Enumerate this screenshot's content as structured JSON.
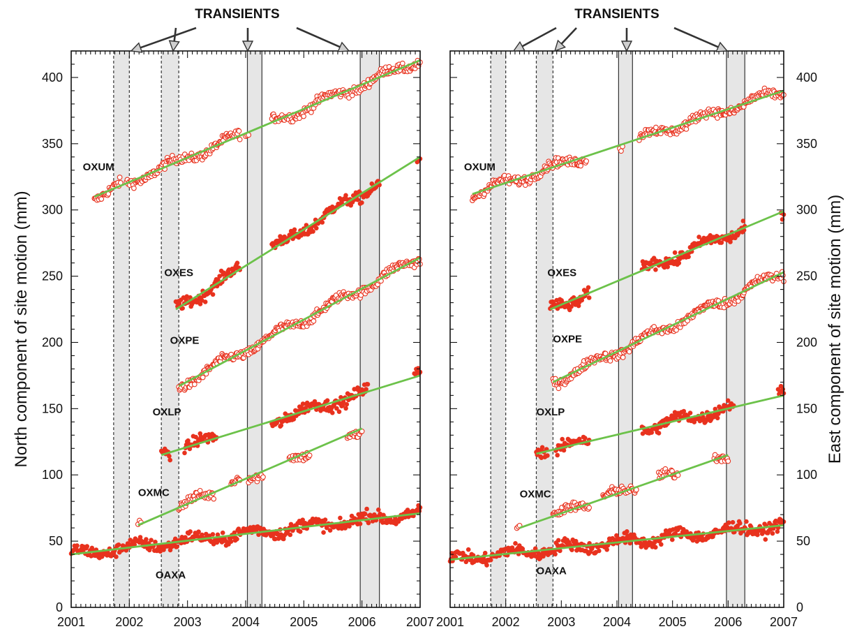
{
  "chart_data": [
    {
      "type": "scatter",
      "panel": "left",
      "ylabel": "North component of site motion (mm)",
      "xlim": [
        2001,
        2007
      ],
      "ylim": [
        0,
        420
      ],
      "x_ticks": [
        "2001",
        "2002",
        "2003",
        "2004",
        "2005",
        "2006",
        "2007"
      ],
      "y_ticks": [
        "0",
        "50",
        "100",
        "150",
        "200",
        "250",
        "300",
        "350",
        "400"
      ],
      "grid": false,
      "top_annotation": "TRANSIENTS",
      "transients": [
        {
          "start": 2001.73,
          "end": 2002.0,
          "border": "dashed"
        },
        {
          "start": 2002.55,
          "end": 2002.85,
          "border": "dashed"
        },
        {
          "start": 2004.03,
          "end": 2004.28,
          "border": "solid"
        },
        {
          "start": 2005.97,
          "end": 2006.3,
          "border": "solid"
        }
      ],
      "series": [
        {
          "name": "OXUM",
          "marker": "open",
          "label_at": [
            2001.2,
            330
          ],
          "segments": [
            [
              2001.4,
              2001.85
            ],
            [
              2001.95,
              2003.9
            ],
            [
              2004.0,
              2004.05
            ],
            [
              2004.45,
              2007.0
            ]
          ],
          "fit": {
            "x": [
              2001.4,
              2007.0
            ],
            "y": [
              310,
              413
            ]
          }
        },
        {
          "name": "OXES",
          "marker": "filled",
          "label_at": [
            2002.6,
            250
          ],
          "segments": [
            [
              2002.8,
              2003.9
            ],
            [
              2004.45,
              2006.3
            ],
            [
              2006.95,
              2007.0
            ]
          ],
          "fit": {
            "x": [
              2002.8,
              2007.0
            ],
            "y": [
              225,
              340
            ]
          }
        },
        {
          "name": "OXPE",
          "marker": "open",
          "label_at": [
            2002.7,
            199
          ],
          "segments": [
            [
              2002.85,
              2007.0
            ]
          ],
          "fit": {
            "x": [
              2002.85,
              2007.0
            ],
            "y": [
              167,
              264
            ]
          }
        },
        {
          "name": "OXLP",
          "marker": "filled",
          "label_at": [
            2002.4,
            145
          ],
          "segments": [
            [
              2002.55,
              2002.7
            ],
            [
              2002.95,
              2003.5
            ],
            [
              2004.45,
              2006.1
            ],
            [
              2006.9,
              2007.0
            ]
          ],
          "fit": {
            "x": [
              2002.55,
              2007.0
            ],
            "y": [
              115,
              175
            ]
          }
        },
        {
          "name": "OXMC",
          "marker": "open",
          "label_at": [
            2002.15,
            84
          ],
          "segments": [
            [
              2002.15,
              2002.2
            ],
            [
              2002.85,
              2003.45
            ],
            [
              2003.75,
              2003.9
            ],
            [
              2004.05,
              2004.3
            ],
            [
              2004.75,
              2005.1
            ],
            [
              2005.75,
              2006.0
            ]
          ],
          "fit": {
            "x": [
              2002.15,
              2006.0
            ],
            "y": [
              62,
              135
            ]
          }
        },
        {
          "name": "OAXA",
          "marker": "filled",
          "label_at": [
            2002.45,
            22
          ],
          "segments": [
            [
              2001.0,
              2007.0
            ]
          ],
          "fit": {
            "x": [
              2001.0,
              2007.0
            ],
            "y": [
              40,
              71
            ]
          }
        }
      ]
    },
    {
      "type": "scatter",
      "panel": "right",
      "ylabel": "East component of site motion (mm)",
      "xlim": [
        2001,
        2007
      ],
      "ylim": [
        0,
        420
      ],
      "x_ticks": [
        "2001",
        "2002",
        "2003",
        "2004",
        "2005",
        "2006",
        "2007"
      ],
      "y_ticks": [
        "0",
        "50",
        "100",
        "150",
        "200",
        "250",
        "300",
        "350",
        "400"
      ],
      "grid": false,
      "top_annotation": "TRANSIENTS",
      "transients": [
        {
          "start": 2001.73,
          "end": 2002.0,
          "border": "dashed"
        },
        {
          "start": 2002.55,
          "end": 2002.85,
          "border": "dashed"
        },
        {
          "start": 2004.03,
          "end": 2004.28,
          "border": "solid"
        },
        {
          "start": 2005.97,
          "end": 2006.3,
          "border": "solid"
        }
      ],
      "series": [
        {
          "name": "OXUM",
          "marker": "open",
          "label_at": [
            2001.25,
            330
          ],
          "segments": [
            [
              2001.4,
              2003.45
            ],
            [
              2004.05,
              2004.1
            ],
            [
              2004.4,
              2007.0
            ]
          ],
          "fit": {
            "x": [
              2001.4,
              2007.0
            ],
            "y": [
              312,
              390
            ]
          }
        },
        {
          "name": "OXES",
          "marker": "filled",
          "label_at": [
            2002.75,
            250
          ],
          "segments": [
            [
              2002.8,
              2003.5
            ],
            [
              2004.45,
              2006.3
            ],
            [
              2006.95,
              2007.0
            ]
          ],
          "fit": {
            "x": [
              2002.8,
              2007.0
            ],
            "y": [
              225,
              299
            ]
          }
        },
        {
          "name": "OXPE",
          "marker": "open",
          "label_at": [
            2002.85,
            200
          ],
          "segments": [
            [
              2002.85,
              2007.0
            ]
          ],
          "fit": {
            "x": [
              2002.85,
              2007.0
            ],
            "y": [
              170,
              253
            ]
          }
        },
        {
          "name": "OXLP",
          "marker": "filled",
          "label_at": [
            2002.55,
            145
          ],
          "segments": [
            [
              2002.55,
              2002.75
            ],
            [
              2002.9,
              2003.5
            ],
            [
              2004.45,
              2006.1
            ],
            [
              2006.9,
              2007.0
            ]
          ],
          "fit": {
            "x": [
              2002.55,
              2007.0
            ],
            "y": [
              116,
              160
            ]
          }
        },
        {
          "name": "OXMC",
          "marker": "open",
          "label_at": [
            2002.25,
            83
          ],
          "segments": [
            [
              2002.2,
              2002.25
            ],
            [
              2002.85,
              2003.5
            ],
            [
              2003.75,
              2004.35
            ],
            [
              2004.75,
              2005.1
            ],
            [
              2005.75,
              2006.0
            ]
          ],
          "fit": {
            "x": [
              2002.25,
              2006.0
            ],
            "y": [
              60,
              115
            ]
          }
        },
        {
          "name": "OAXA",
          "marker": "filled",
          "label_at": [
            2002.55,
            25
          ],
          "segments": [
            [
              2001.0,
              2007.0
            ]
          ],
          "fit": {
            "x": [
              2001.0,
              2007.0
            ],
            "y": [
              36,
              62
            ]
          }
        }
      ]
    }
  ]
}
